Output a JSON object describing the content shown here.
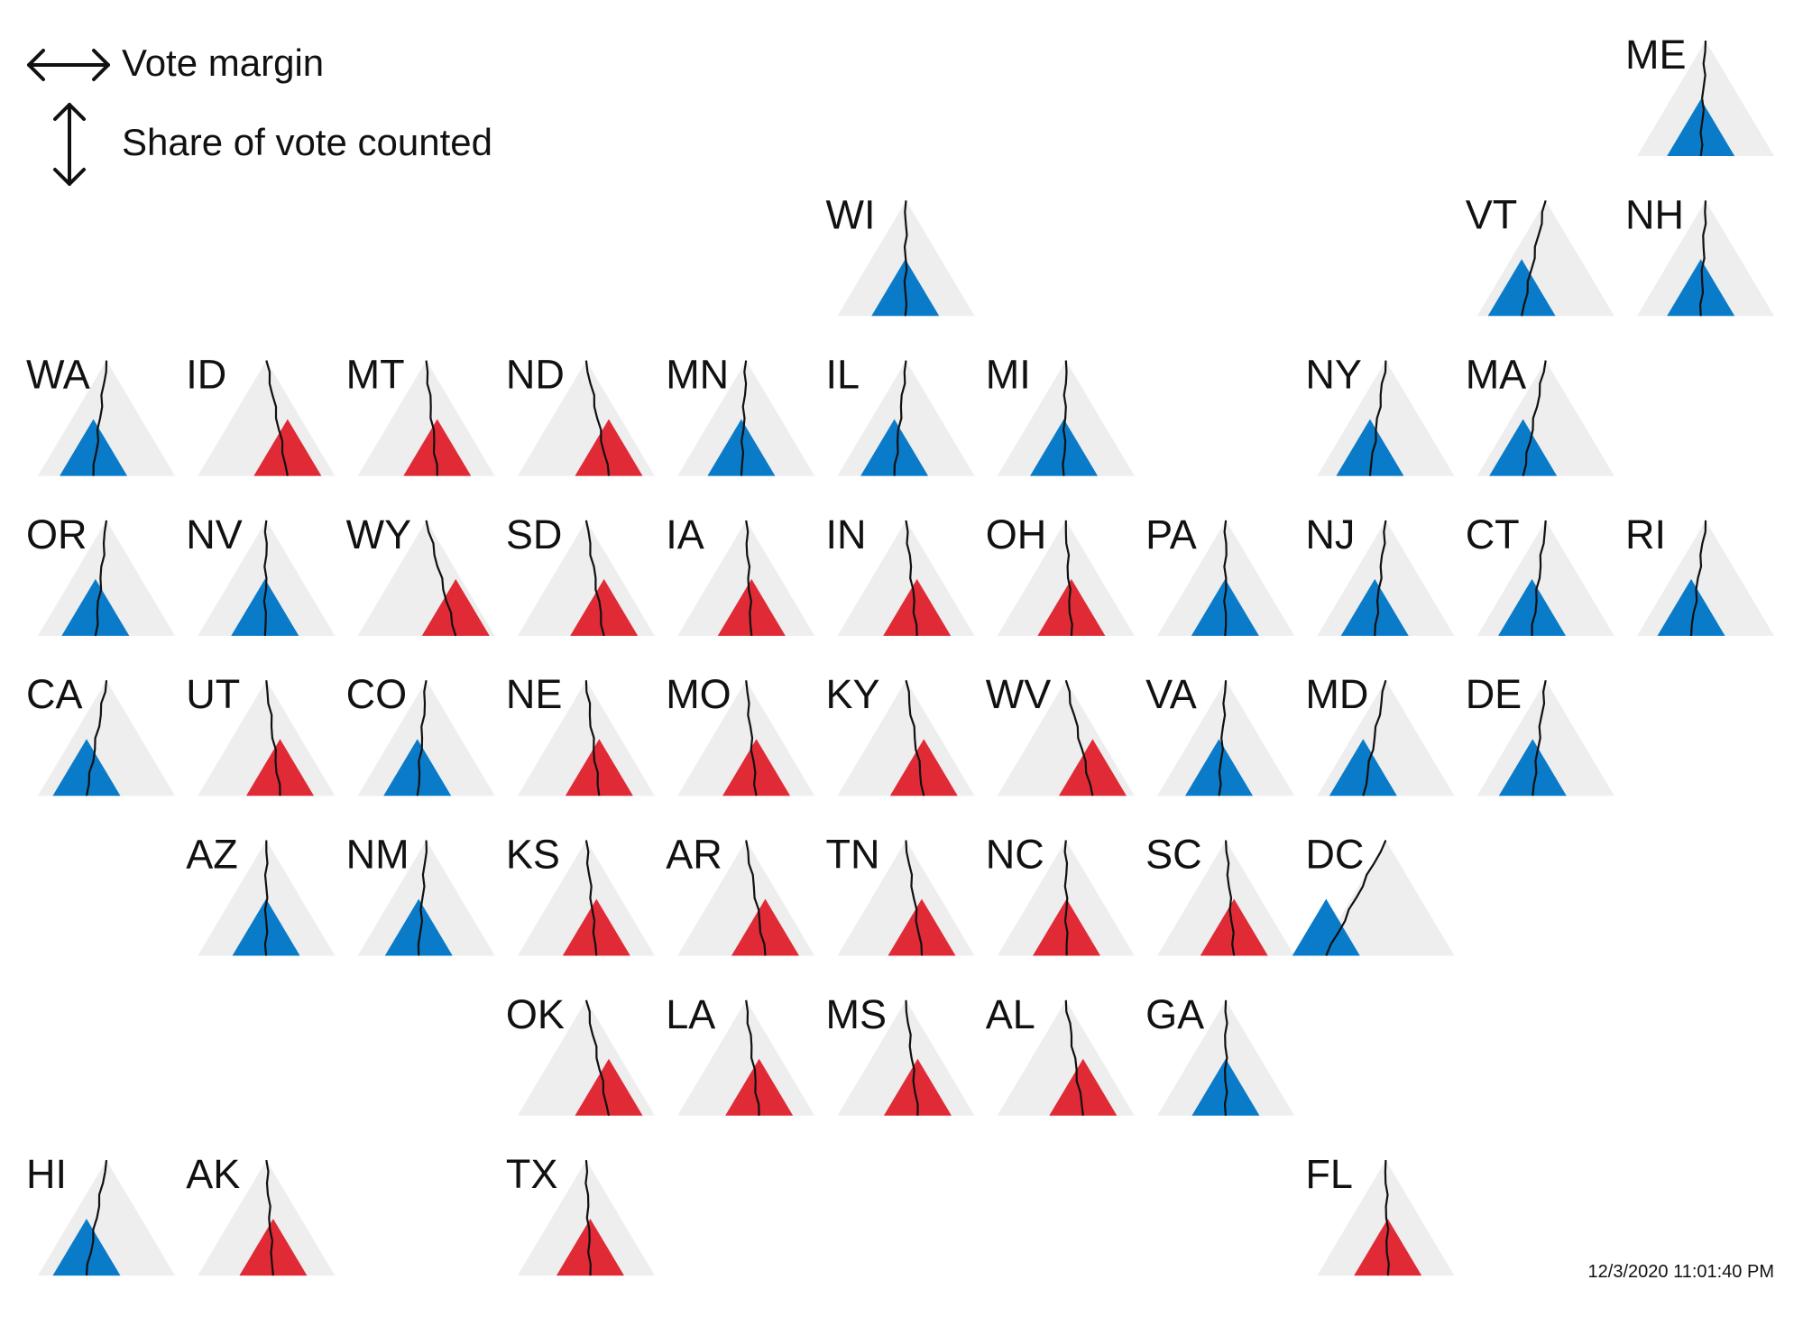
{
  "legend": {
    "margin_label": "Vote margin",
    "share_label": "Share of vote counted",
    "margin_icon": "double-arrow-horizontal-icon",
    "share_icon": "double-arrow-vertical-icon"
  },
  "timestamp": "12/3/2020 11:01:40 PM",
  "colors": {
    "dem": "#0a7bc8",
    "rep": "#e02b36",
    "background_triangle": "#eeeeee",
    "trace": "#111111"
  },
  "states": [
    {
      "code": "ME",
      "row": 0,
      "col": 10,
      "party": "D",
      "margin": -0.07
    },
    {
      "code": "WI",
      "row": 1,
      "col": 5,
      "party": "D",
      "margin": -0.01
    },
    {
      "code": "VT",
      "row": 1,
      "col": 9,
      "party": "D",
      "margin": -0.35
    },
    {
      "code": "NH",
      "row": 1,
      "col": 10,
      "party": "D",
      "margin": -0.07
    },
    {
      "code": "WA",
      "row": 2,
      "col": 0,
      "party": "D",
      "margin": -0.19
    },
    {
      "code": "ID",
      "row": 2,
      "col": 1,
      "party": "R",
      "margin": 0.31
    },
    {
      "code": "MT",
      "row": 2,
      "col": 2,
      "party": "R",
      "margin": 0.16
    },
    {
      "code": "ND",
      "row": 2,
      "col": 3,
      "party": "R",
      "margin": 0.33
    },
    {
      "code": "MN",
      "row": 2,
      "col": 4,
      "party": "D",
      "margin": -0.07
    },
    {
      "code": "IL",
      "row": 2,
      "col": 5,
      "party": "D",
      "margin": -0.17
    },
    {
      "code": "MI",
      "row": 2,
      "col": 6,
      "party": "D",
      "margin": -0.03
    },
    {
      "code": "NY",
      "row": 2,
      "col": 8,
      "party": "D",
      "margin": -0.23
    },
    {
      "code": "MA",
      "row": 2,
      "col": 9,
      "party": "D",
      "margin": -0.33
    },
    {
      "code": "OR",
      "row": 3,
      "col": 0,
      "party": "D",
      "margin": -0.16
    },
    {
      "code": "NV",
      "row": 3,
      "col": 1,
      "party": "D",
      "margin": -0.02
    },
    {
      "code": "WY",
      "row": 3,
      "col": 2,
      "party": "R",
      "margin": 0.43
    },
    {
      "code": "SD",
      "row": 3,
      "col": 3,
      "party": "R",
      "margin": 0.26
    },
    {
      "code": "IA",
      "row": 3,
      "col": 4,
      "party": "R",
      "margin": 0.08
    },
    {
      "code": "IN",
      "row": 3,
      "col": 5,
      "party": "R",
      "margin": 0.16
    },
    {
      "code": "OH",
      "row": 3,
      "col": 6,
      "party": "R",
      "margin": 0.08
    },
    {
      "code": "PA",
      "row": 3,
      "col": 7,
      "party": "D",
      "margin": -0.01
    },
    {
      "code": "NJ",
      "row": 3,
      "col": 8,
      "party": "D",
      "margin": -0.16
    },
    {
      "code": "CT",
      "row": 3,
      "col": 9,
      "party": "D",
      "margin": -0.2
    },
    {
      "code": "RI",
      "row": 3,
      "col": 10,
      "party": "D",
      "margin": -0.21
    },
    {
      "code": "CA",
      "row": 4,
      "col": 0,
      "party": "D",
      "margin": -0.29
    },
    {
      "code": "UT",
      "row": 4,
      "col": 1,
      "party": "R",
      "margin": 0.2
    },
    {
      "code": "CO",
      "row": 4,
      "col": 2,
      "party": "D",
      "margin": -0.13
    },
    {
      "code": "NE",
      "row": 4,
      "col": 3,
      "party": "R",
      "margin": 0.19
    },
    {
      "code": "MO",
      "row": 4,
      "col": 4,
      "party": "R",
      "margin": 0.15
    },
    {
      "code": "KY",
      "row": 4,
      "col": 5,
      "party": "R",
      "margin": 0.26
    },
    {
      "code": "WV",
      "row": 4,
      "col": 6,
      "party": "R",
      "margin": 0.39
    },
    {
      "code": "VA",
      "row": 4,
      "col": 7,
      "party": "D",
      "margin": -0.1
    },
    {
      "code": "MD",
      "row": 4,
      "col": 8,
      "party": "D",
      "margin": -0.33
    },
    {
      "code": "DE",
      "row": 4,
      "col": 9,
      "party": "D",
      "margin": -0.19
    },
    {
      "code": "AZ",
      "row": 5,
      "col": 1,
      "party": "D",
      "margin": -0.003
    },
    {
      "code": "NM",
      "row": 5,
      "col": 2,
      "party": "D",
      "margin": -0.11
    },
    {
      "code": "KS",
      "row": 5,
      "col": 3,
      "party": "R",
      "margin": 0.15
    },
    {
      "code": "AR",
      "row": 5,
      "col": 4,
      "party": "R",
      "margin": 0.28
    },
    {
      "code": "TN",
      "row": 5,
      "col": 5,
      "party": "R",
      "margin": 0.23
    },
    {
      "code": "NC",
      "row": 5,
      "col": 6,
      "party": "R",
      "margin": 0.01
    },
    {
      "code": "SC",
      "row": 5,
      "col": 7,
      "party": "R",
      "margin": 0.12
    },
    {
      "code": "DC",
      "row": 5,
      "col": 8,
      "party": "D",
      "margin": -0.87
    },
    {
      "code": "OK",
      "row": 6,
      "col": 3,
      "party": "R",
      "margin": 0.33
    },
    {
      "code": "LA",
      "row": 6,
      "col": 4,
      "party": "R",
      "margin": 0.19
    },
    {
      "code": "MS",
      "row": 6,
      "col": 5,
      "party": "R",
      "margin": 0.17
    },
    {
      "code": "AL",
      "row": 6,
      "col": 6,
      "party": "R",
      "margin": 0.25
    },
    {
      "code": "GA",
      "row": 6,
      "col": 7,
      "party": "D",
      "margin": -0.002
    },
    {
      "code": "HI",
      "row": 7,
      "col": 0,
      "party": "D",
      "margin": -0.29
    },
    {
      "code": "AK",
      "row": 7,
      "col": 1,
      "party": "R",
      "margin": 0.1
    },
    {
      "code": "TX",
      "row": 7,
      "col": 3,
      "party": "R",
      "margin": 0.06
    },
    {
      "code": "FL",
      "row": 7,
      "col": 8,
      "party": "R",
      "margin": 0.03
    }
  ]
}
